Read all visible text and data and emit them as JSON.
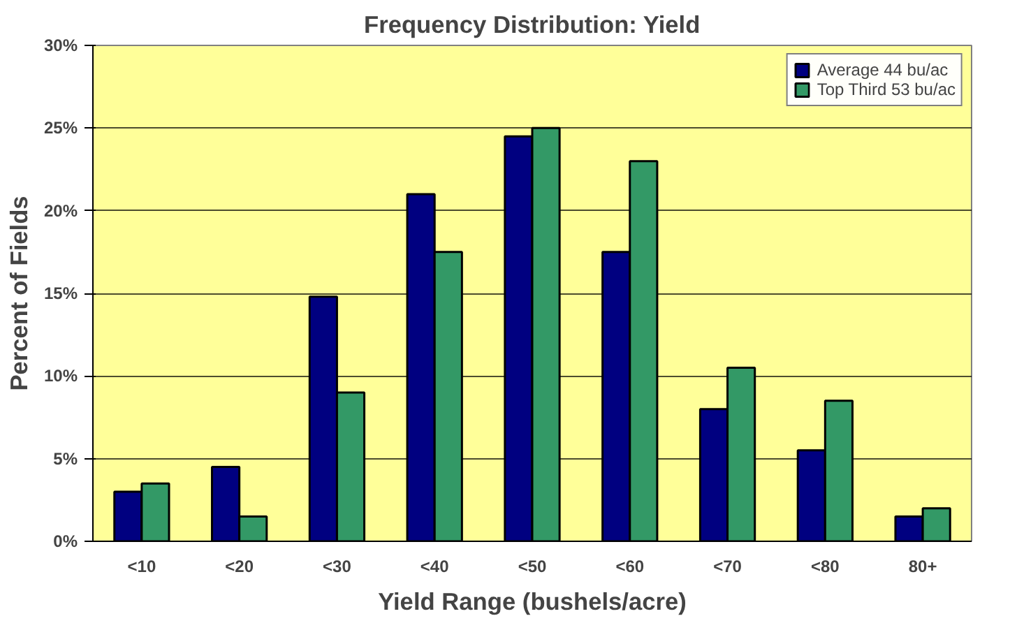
{
  "chart_data": {
    "type": "bar",
    "title": "Frequency Distribution: Yield",
    "xlabel": "Yield Range (bushels/acre)",
    "ylabel": "Percent of Fields",
    "categories": [
      "<10",
      "<20",
      "<30",
      "<40",
      "<50",
      "<60",
      "<70",
      "<80",
      "80+"
    ],
    "series": [
      {
        "name": "Average 44 bu/ac",
        "color": "#000080",
        "values": [
          3,
          4.5,
          14.8,
          21,
          24.5,
          17.5,
          8,
          5.5,
          1.5
        ]
      },
      {
        "name": "Top Third 53 bu/ac",
        "color": "#339966",
        "values": [
          3.5,
          1.5,
          9,
          17.5,
          25,
          23,
          10.5,
          8.5,
          2
        ]
      }
    ],
    "ylim": [
      0,
      30
    ],
    "yticks": [
      {
        "value": 0,
        "label": "0%"
      },
      {
        "value": 5,
        "label": "5%"
      },
      {
        "value": 10,
        "label": "10%"
      },
      {
        "value": 15,
        "label": "15%"
      },
      {
        "value": 20,
        "label": "20%"
      },
      {
        "value": 25,
        "label": "25%"
      },
      {
        "value": 30,
        "label": "30%"
      }
    ],
    "grid": "y",
    "legend": "top right"
  }
}
